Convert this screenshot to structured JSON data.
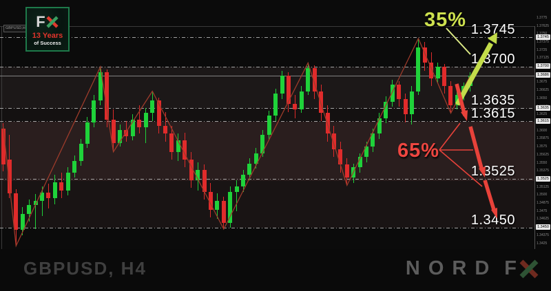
{
  "app": {
    "chart_tag": "GBPUSD,H4"
  },
  "logo": {
    "f": "F",
    "x": "X",
    "years": "13 Years",
    "tagline": "of Success"
  },
  "annotations": {
    "bull_pct": "35%",
    "bear_pct": "65%"
  },
  "footer": {
    "symbol": "GBPUSD, H4",
    "brand_word": "NORD",
    "brand_f": "F",
    "brand_x": "X"
  },
  "colors": {
    "candle_up": "#1fd23a",
    "candle_down": "#e02b2b",
    "zigzag": "#9c3b2b",
    "bull_arrow": "#c3dc4a",
    "bull_thin_line": "#dcea86",
    "bear_arrow": "#e8423a",
    "pct_bull": "#cde14e",
    "pct_bear": "#ee4640",
    "level_label": "#ffffff",
    "logo_x_red": "#e03a2e",
    "logo_x_green": "#3aa060",
    "brand_x_red": "#6e2a1f",
    "brand_x_green": "#2e5234"
  },
  "chart_data": {
    "type": "candlestick",
    "symbol": "GBPUSD",
    "timeframe": "H4",
    "ylim": [
      1.3416,
      1.3762
    ],
    "grid": false,
    "current_price": 1.3686,
    "levels": [
      {
        "label": "1.3745",
        "price": 1.3745
      },
      {
        "label": "1.3700",
        "price": 1.37
      },
      {
        "label": "1.3635",
        "price": 1.3635
      },
      {
        "label": "1.3615",
        "price": 1.3615
      },
      {
        "label": "1.3525",
        "price": 1.3525
      },
      {
        "label": "1.3450",
        "price": 1.345
      }
    ],
    "scenario": {
      "bullish_probability": "35%",
      "bullish_target": 1.3745,
      "bearish_probability": "65%",
      "bearish_targets": [
        1.3615,
        1.3525,
        1.345
      ]
    },
    "axis_ticks": [
      1.3775,
      1.37625,
      1.375,
      1.37375,
      1.3725,
      1.37125,
      1.37,
      1.36875,
      1.3675,
      1.36625,
      1.365,
      1.36375,
      1.3625,
      1.36125,
      1.36,
      1.35875,
      1.3575,
      1.35625,
      1.355,
      1.35375,
      1.3525,
      1.35125,
      1.35,
      1.34875,
      1.3475,
      1.34625,
      1.345,
      1.34375,
      1.3425
    ],
    "candles": [
      [
        1.3604,
        1.3612,
        1.3538,
        1.3548
      ],
      [
        1.3556,
        1.3594,
        1.3496,
        1.3504
      ],
      [
        1.3504,
        1.351,
        1.3422,
        1.3447
      ],
      [
        1.3447,
        1.3482,
        1.3438,
        1.3471
      ],
      [
        1.3471,
        1.3494,
        1.346,
        1.3485
      ],
      [
        1.3485,
        1.3502,
        1.3448,
        1.3492
      ],
      [
        1.3492,
        1.3514,
        1.3468,
        1.3505
      ],
      [
        1.3505,
        1.3518,
        1.348,
        1.3496
      ],
      [
        1.3496,
        1.3532,
        1.3486,
        1.3521
      ],
      [
        1.3521,
        1.3536,
        1.3496,
        1.3508
      ],
      [
        1.3508,
        1.3544,
        1.35,
        1.3536
      ],
      [
        1.3536,
        1.3562,
        1.3528,
        1.3554
      ],
      [
        1.3554,
        1.3588,
        1.3546,
        1.358
      ],
      [
        1.358,
        1.3622,
        1.3574,
        1.3614
      ],
      [
        1.3614,
        1.3656,
        1.3606,
        1.3648
      ],
      [
        1.3648,
        1.37,
        1.364,
        1.3692
      ],
      [
        1.3692,
        1.3696,
        1.3606,
        1.3618
      ],
      [
        1.3618,
        1.3634,
        1.3568,
        1.3582
      ],
      [
        1.3582,
        1.361,
        1.3576,
        1.3602
      ],
      [
        1.3602,
        1.3616,
        1.3584,
        1.3592
      ],
      [
        1.3592,
        1.3626,
        1.3586,
        1.3618
      ],
      [
        1.3618,
        1.364,
        1.3596,
        1.3606
      ],
      [
        1.3606,
        1.3636,
        1.3582,
        1.3628
      ],
      [
        1.3628,
        1.3662,
        1.3616,
        1.3648
      ],
      [
        1.3648,
        1.3652,
        1.3596,
        1.3608
      ],
      [
        1.3608,
        1.363,
        1.3584,
        1.3596
      ],
      [
        1.3596,
        1.3608,
        1.3556,
        1.3568
      ],
      [
        1.3568,
        1.3596,
        1.3554,
        1.3586
      ],
      [
        1.3586,
        1.3598,
        1.3544,
        1.3556
      ],
      [
        1.3556,
        1.3568,
        1.3512,
        1.3524
      ],
      [
        1.3524,
        1.3552,
        1.3508,
        1.354
      ],
      [
        1.354,
        1.3548,
        1.3494,
        1.3506
      ],
      [
        1.3506,
        1.352,
        1.3466,
        1.3478
      ],
      [
        1.3478,
        1.3504,
        1.3464,
        1.3492
      ],
      [
        1.3492,
        1.3498,
        1.3448,
        1.3458
      ],
      [
        1.3458,
        1.3514,
        1.345,
        1.3506
      ],
      [
        1.3506,
        1.3524,
        1.3476,
        1.3514
      ],
      [
        1.3514,
        1.354,
        1.3506,
        1.3532
      ],
      [
        1.3532,
        1.3558,
        1.3524,
        1.355
      ],
      [
        1.355,
        1.3574,
        1.3542,
        1.3566
      ],
      [
        1.3566,
        1.3602,
        1.356,
        1.3594
      ],
      [
        1.3594,
        1.3632,
        1.3586,
        1.3624
      ],
      [
        1.3624,
        1.3666,
        1.3616,
        1.3658
      ],
      [
        1.3658,
        1.3694,
        1.365,
        1.3686
      ],
      [
        1.3686,
        1.3692,
        1.363,
        1.3642
      ],
      [
        1.3642,
        1.3656,
        1.362,
        1.3634
      ],
      [
        1.3634,
        1.367,
        1.3628,
        1.3662
      ],
      [
        1.3662,
        1.3706,
        1.3656,
        1.3698
      ],
      [
        1.3698,
        1.3702,
        1.365,
        1.3662
      ],
      [
        1.3662,
        1.3672,
        1.3616,
        1.3628
      ],
      [
        1.3628,
        1.364,
        1.3584,
        1.3596
      ],
      [
        1.3596,
        1.3608,
        1.356,
        1.3572
      ],
      [
        1.3572,
        1.3584,
        1.3536,
        1.3548
      ],
      [
        1.3548,
        1.3558,
        1.3516,
        1.3528
      ],
      [
        1.3528,
        1.355,
        1.352,
        1.3544
      ],
      [
        1.3544,
        1.3566,
        1.3536,
        1.356
      ],
      [
        1.356,
        1.3584,
        1.3552,
        1.3576
      ],
      [
        1.3576,
        1.3604,
        1.3568,
        1.3596
      ],
      [
        1.3596,
        1.3628,
        1.3588,
        1.362
      ],
      [
        1.362,
        1.3654,
        1.3612,
        1.3646
      ],
      [
        1.3646,
        1.368,
        1.3638,
        1.3672
      ],
      [
        1.3672,
        1.3678,
        1.3638,
        1.365
      ],
      [
        1.365,
        1.3658,
        1.3614,
        1.3626
      ],
      [
        1.3626,
        1.367,
        1.361,
        1.3662
      ],
      [
        1.3662,
        1.3744,
        1.3656,
        1.373
      ],
      [
        1.373,
        1.3738,
        1.3694,
        1.3706
      ],
      [
        1.3706,
        1.3722,
        1.367,
        1.3682
      ],
      [
        1.3682,
        1.3706,
        1.3676,
        1.37
      ],
      [
        1.37,
        1.3704,
        1.3658,
        1.367
      ],
      [
        1.367,
        1.3678,
        1.3628,
        1.364
      ],
      [
        1.364,
        1.3662,
        1.3634,
        1.3656
      ],
      [
        1.3656,
        1.3676,
        1.3648,
        1.367
      ],
      [
        1.367,
        1.3692,
        1.3662,
        1.3686
      ]
    ],
    "zigzag": [
      [
        0,
        1.3608
      ],
      [
        2,
        1.3422
      ],
      [
        15,
        1.37
      ],
      [
        17,
        1.3568
      ],
      [
        23,
        1.3662
      ],
      [
        34,
        1.3448
      ],
      [
        47,
        1.3706
      ],
      [
        53,
        1.3516
      ],
      [
        64,
        1.3744
      ],
      [
        69,
        1.3628
      ],
      [
        72,
        1.3686
      ]
    ]
  }
}
